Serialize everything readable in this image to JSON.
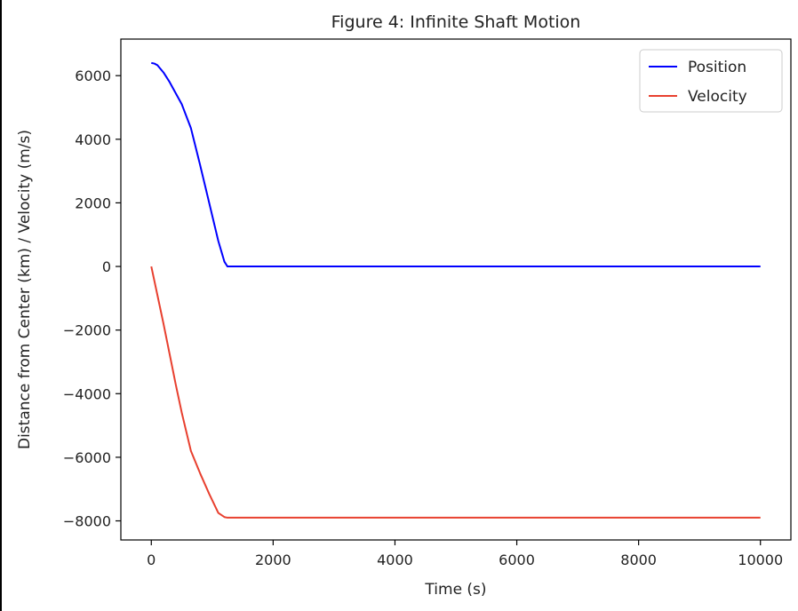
{
  "chart_data": {
    "type": "line",
    "title": "Figure 4: Infinite Shaft Motion",
    "xlabel": "Time (s)",
    "ylabel": "Distance from Center (km) / Velocity (m/s)",
    "xlim": [
      -500,
      10500
    ],
    "ylim": [
      -8600,
      7150
    ],
    "xticks": [
      0,
      2000,
      4000,
      6000,
      8000,
      10000
    ],
    "yticks": [
      -8000,
      -6000,
      -4000,
      -2000,
      0,
      2000,
      4000,
      6000
    ],
    "xtick_labels": [
      "0",
      "2000",
      "4000",
      "6000",
      "8000",
      "10000"
    ],
    "ytick_labels": [
      "−8000",
      "−6000",
      "−4000",
      "−2000",
      "0",
      "2000",
      "4000",
      "6000"
    ],
    "grid": false,
    "legend_position": "top-right",
    "series": [
      {
        "name": "Position",
        "color": "#0000ff",
        "x": [
          0,
          50,
          100,
          200,
          300,
          400,
          500,
          650,
          800,
          950,
          1100,
          1200,
          1250,
          1300,
          2000,
          4000,
          6000,
          8000,
          10000
        ],
        "y": [
          6400,
          6380,
          6330,
          6100,
          5800,
          5450,
          5100,
          4350,
          3200,
          2000,
          800,
          150,
          0,
          0,
          0,
          0,
          0,
          0,
          0
        ]
      },
      {
        "name": "Velocity",
        "color": "#e8402f",
        "x": [
          0,
          100,
          200,
          300,
          400,
          500,
          650,
          800,
          950,
          1100,
          1200,
          1250,
          1300,
          2000,
          4000,
          6000,
          8000,
          10000
        ],
        "y": [
          0,
          -900,
          -1800,
          -2750,
          -3700,
          -4600,
          -5800,
          -6500,
          -7150,
          -7750,
          -7880,
          -7900,
          -7900,
          -7900,
          -7900,
          -7900,
          -7900,
          -7900
        ]
      }
    ]
  }
}
